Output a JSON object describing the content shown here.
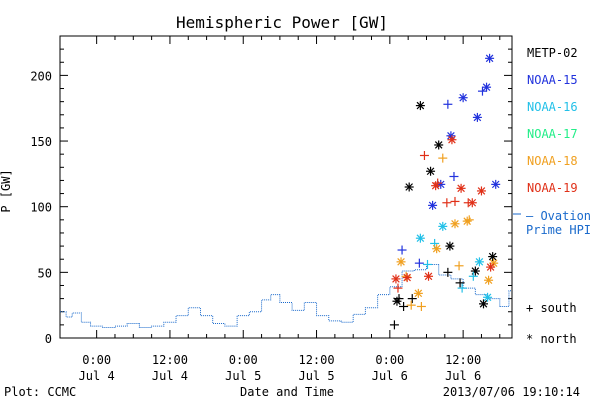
{
  "chart_data": {
    "type": "scatter",
    "title": "Hemispheric Power [GW]",
    "ylabel": "P [GW]",
    "xlabel": "Date and Time",
    "ylim": [
      0,
      230
    ],
    "xlim": [
      "2013-07-03 18:00",
      "2013-07-06 20:00"
    ],
    "yticks": [
      0,
      50,
      100,
      150,
      200
    ],
    "xticks": [
      {
        "time": "2013-07-04 00:00",
        "label_time": "0:00",
        "label_date": "Jul 4"
      },
      {
        "time": "2013-07-04 12:00",
        "label_time": "12:00",
        "label_date": "Jul 4"
      },
      {
        "time": "2013-07-05 00:00",
        "label_time": "0:00",
        "label_date": "Jul 5"
      },
      {
        "time": "2013-07-05 12:00",
        "label_time": "12:00",
        "label_date": "Jul 5"
      },
      {
        "time": "2013-07-06 00:00",
        "label_time": "0:00",
        "label_date": "Jul 6"
      },
      {
        "time": "2013-07-06 12:00",
        "label_time": "12:00",
        "label_date": "Jul 6"
      }
    ],
    "legend": {
      "placement": "right",
      "entries": [
        {
          "name": "METP-02",
          "color": "#000000"
        },
        {
          "name": "NOAA-15",
          "color": "#2233dd"
        },
        {
          "name": "NOAA-16",
          "color": "#22c0e8"
        },
        {
          "name": "NOAA-17",
          "color": "#22ee88"
        },
        {
          "name": "NOAA-18",
          "color": "#f0a020"
        },
        {
          "name": "NOAA-19",
          "color": "#e03018"
        }
      ],
      "ovation_label_1": "— Ovation",
      "ovation_label_2": "Prime HPI",
      "ovation_color": "#1a6acc",
      "south_label": "+ south",
      "north_label": "* north"
    },
    "ovation_series": {
      "name": "Ovation Prime HPI",
      "points": [
        [
          "2013-07-03 18:00",
          20
        ],
        [
          "2013-07-03 19:00",
          16
        ],
        [
          "2013-07-03 20:00",
          19
        ],
        [
          "2013-07-03 21:30",
          12
        ],
        [
          "2013-07-03 23:00",
          9
        ],
        [
          "2013-07-04 01:00",
          8
        ],
        [
          "2013-07-04 03:00",
          9
        ],
        [
          "2013-07-04 05:00",
          11
        ],
        [
          "2013-07-04 07:00",
          8
        ],
        [
          "2013-07-04 09:00",
          9
        ],
        [
          "2013-07-04 11:00",
          12
        ],
        [
          "2013-07-04 13:00",
          17
        ],
        [
          "2013-07-04 15:00",
          23
        ],
        [
          "2013-07-04 17:00",
          17
        ],
        [
          "2013-07-04 19:00",
          11
        ],
        [
          "2013-07-04 21:00",
          9
        ],
        [
          "2013-07-04 23:00",
          17
        ],
        [
          "2013-07-05 01:00",
          20
        ],
        [
          "2013-07-05 03:00",
          29
        ],
        [
          "2013-07-05 04:30",
          33
        ],
        [
          "2013-07-05 06:00",
          27
        ],
        [
          "2013-07-05 08:00",
          21
        ],
        [
          "2013-07-05 10:00",
          27
        ],
        [
          "2013-07-05 12:00",
          17
        ],
        [
          "2013-07-05 14:00",
          13
        ],
        [
          "2013-07-05 16:00",
          12
        ],
        [
          "2013-07-05 18:00",
          18
        ],
        [
          "2013-07-05 20:00",
          23
        ],
        [
          "2013-07-05 22:00",
          33
        ],
        [
          "2013-07-06 00:00",
          39
        ],
        [
          "2013-07-06 02:00",
          51
        ],
        [
          "2013-07-06 04:00",
          52
        ],
        [
          "2013-07-06 06:00",
          56
        ],
        [
          "2013-07-06 08:00",
          48
        ],
        [
          "2013-07-06 10:00",
          45
        ],
        [
          "2013-07-06 12:00",
          38
        ],
        [
          "2013-07-06 14:00",
          33
        ],
        [
          "2013-07-06 16:00",
          30
        ],
        [
          "2013-07-06 18:00",
          24
        ],
        [
          "2013-07-06 19:30",
          36
        ]
      ]
    },
    "series": [
      {
        "name": "METP-02",
        "color": "#000000",
        "points": [
          {
            "t": "2013-07-06 00:45",
            "v": 10,
            "h": "south"
          },
          {
            "t": "2013-07-06 01:30",
            "v": 30,
            "h": "south"
          },
          {
            "t": "2013-07-06 02:15",
            "v": 24,
            "h": "south"
          },
          {
            "t": "2013-07-06 03:40",
            "v": 30,
            "h": "south"
          },
          {
            "t": "2013-07-06 09:30",
            "v": 50,
            "h": "south"
          },
          {
            "t": "2013-07-06 11:30",
            "v": 42,
            "h": "south"
          },
          {
            "t": "2013-07-06 01:10",
            "v": 28,
            "h": "north"
          },
          {
            "t": "2013-07-06 03:10",
            "v": 115,
            "h": "north"
          },
          {
            "t": "2013-07-06 05:00",
            "v": 177,
            "h": "north"
          },
          {
            "t": "2013-07-06 06:40",
            "v": 127,
            "h": "north"
          },
          {
            "t": "2013-07-06 08:00",
            "v": 147,
            "h": "north"
          },
          {
            "t": "2013-07-06 09:50",
            "v": 70,
            "h": "north"
          },
          {
            "t": "2013-07-06 14:00",
            "v": 51,
            "h": "north"
          },
          {
            "t": "2013-07-06 15:20",
            "v": 26,
            "h": "north"
          },
          {
            "t": "2013-07-06 16:50",
            "v": 62,
            "h": "north"
          }
        ]
      },
      {
        "name": "NOAA-15",
        "color": "#2233dd",
        "points": [
          {
            "t": "2013-07-06 02:00",
            "v": 67,
            "h": "south"
          },
          {
            "t": "2013-07-06 04:50",
            "v": 57,
            "h": "south"
          },
          {
            "t": "2013-07-06 09:30",
            "v": 178,
            "h": "south"
          },
          {
            "t": "2013-07-06 10:30",
            "v": 123,
            "h": "south"
          },
          {
            "t": "2013-07-06 15:10",
            "v": 188,
            "h": "south"
          },
          {
            "t": "2013-07-06 07:00",
            "v": 101,
            "h": "north"
          },
          {
            "t": "2013-07-06 08:20",
            "v": 117,
            "h": "north"
          },
          {
            "t": "2013-07-06 10:00",
            "v": 154,
            "h": "north"
          },
          {
            "t": "2013-07-06 12:00",
            "v": 183,
            "h": "north"
          },
          {
            "t": "2013-07-06 14:20",
            "v": 168,
            "h": "north"
          },
          {
            "t": "2013-07-06 15:50",
            "v": 191,
            "h": "north"
          },
          {
            "t": "2013-07-06 16:20",
            "v": 213,
            "h": "north"
          },
          {
            "t": "2013-07-06 17:20",
            "v": 117,
            "h": "north"
          }
        ]
      },
      {
        "name": "NOAA-16",
        "color": "#22c0e8",
        "points": [
          {
            "t": "2013-07-06 06:10",
            "v": 56,
            "h": "south"
          },
          {
            "t": "2013-07-06 07:20",
            "v": 72,
            "h": "south"
          },
          {
            "t": "2013-07-06 11:50",
            "v": 38,
            "h": "south"
          },
          {
            "t": "2013-07-06 13:40",
            "v": 47,
            "h": "south"
          },
          {
            "t": "2013-07-06 05:00",
            "v": 76,
            "h": "north"
          },
          {
            "t": "2013-07-06 08:40",
            "v": 85,
            "h": "north"
          },
          {
            "t": "2013-07-06 14:40",
            "v": 58,
            "h": "north"
          },
          {
            "t": "2013-07-06 16:00",
            "v": 31,
            "h": "north"
          }
        ]
      },
      {
        "name": "NOAA-17",
        "color": "#22ee88",
        "points": []
      },
      {
        "name": "NOAA-18",
        "color": "#f0a020",
        "points": [
          {
            "t": "2013-07-06 02:40",
            "v": 47,
            "h": "south"
          },
          {
            "t": "2013-07-06 03:30",
            "v": 25,
            "h": "south"
          },
          {
            "t": "2013-07-06 05:10",
            "v": 24,
            "h": "south"
          },
          {
            "t": "2013-07-06 08:40",
            "v": 137,
            "h": "south"
          },
          {
            "t": "2013-07-06 11:20",
            "v": 55,
            "h": "south"
          },
          {
            "t": "2013-07-06 13:00",
            "v": 90,
            "h": "south"
          },
          {
            "t": "2013-07-06 01:50",
            "v": 58,
            "h": "north"
          },
          {
            "t": "2013-07-06 04:40",
            "v": 34,
            "h": "north"
          },
          {
            "t": "2013-07-06 07:40",
            "v": 68,
            "h": "north"
          },
          {
            "t": "2013-07-06 10:40",
            "v": 87,
            "h": "north"
          },
          {
            "t": "2013-07-06 12:40",
            "v": 89,
            "h": "north"
          },
          {
            "t": "2013-07-06 16:10",
            "v": 44,
            "h": "north"
          },
          {
            "t": "2013-07-06 17:00",
            "v": 57,
            "h": "north"
          }
        ]
      },
      {
        "name": "NOAA-19",
        "color": "#e03018",
        "points": [
          {
            "t": "2013-07-06 01:20",
            "v": 38,
            "h": "south"
          },
          {
            "t": "2013-07-06 05:40",
            "v": 139,
            "h": "south"
          },
          {
            "t": "2013-07-06 07:50",
            "v": 118,
            "h": "south"
          },
          {
            "t": "2013-07-06 09:20",
            "v": 103,
            "h": "south"
          },
          {
            "t": "2013-07-06 10:40",
            "v": 104,
            "h": "south"
          },
          {
            "t": "2013-07-06 12:50",
            "v": 103,
            "h": "south"
          },
          {
            "t": "2013-07-06 01:00",
            "v": 45,
            "h": "north"
          },
          {
            "t": "2013-07-06 02:50",
            "v": 46,
            "h": "north"
          },
          {
            "t": "2013-07-06 06:20",
            "v": 47,
            "h": "north"
          },
          {
            "t": "2013-07-06 07:30",
            "v": 116,
            "h": "north"
          },
          {
            "t": "2013-07-06 10:10",
            "v": 151,
            "h": "north"
          },
          {
            "t": "2013-07-06 11:40",
            "v": 114,
            "h": "north"
          },
          {
            "t": "2013-07-06 13:30",
            "v": 103,
            "h": "north"
          },
          {
            "t": "2013-07-06 15:00",
            "v": 112,
            "h": "north"
          },
          {
            "t": "2013-07-06 16:30",
            "v": 54,
            "h": "north"
          }
        ]
      }
    ]
  },
  "footer": {
    "plot_credit": "Plot: CCMC",
    "timestamp": "2013/07/06 19:10:14"
  }
}
